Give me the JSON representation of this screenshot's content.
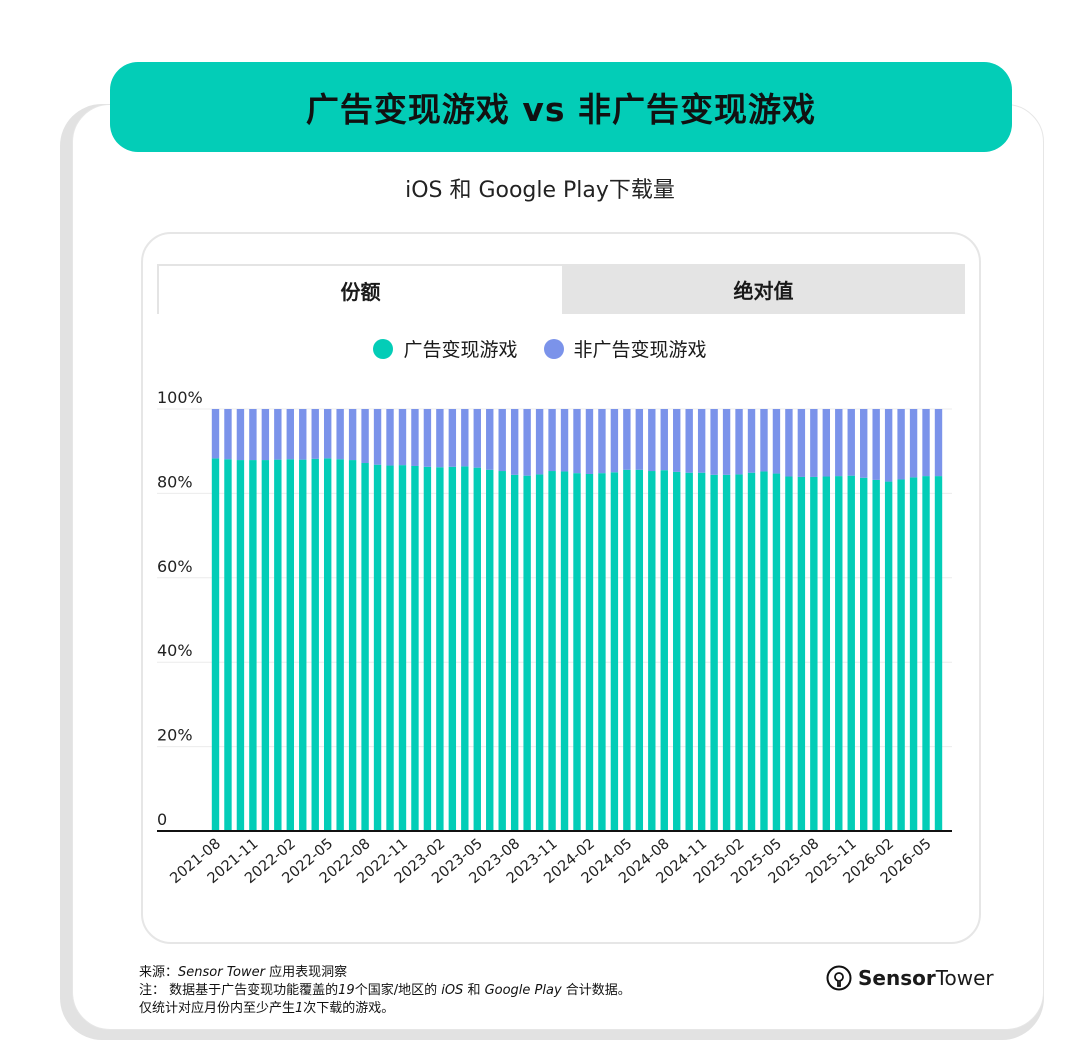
{
  "header": {
    "title": "广告变现游戏 vs 非广告变现游戏"
  },
  "subtitle": "iOS 和 Google Play下载量",
  "tabs": [
    {
      "label": "份额",
      "active": true
    },
    {
      "label": "绝对值",
      "active": false
    }
  ],
  "colors": {
    "ad": "#03cdb7",
    "non_ad": "#7b93ea",
    "accent": "#03cdb7"
  },
  "chart_data": {
    "type": "bar",
    "stacked": true,
    "ylim": [
      0,
      100
    ],
    "yticks": [
      "0",
      "20%",
      "40%",
      "60%",
      "80%",
      "100%"
    ],
    "yticks_values": [
      0,
      20,
      40,
      60,
      80,
      100
    ],
    "legend": {
      "placement": "top-center"
    },
    "xtick_labels": [
      "2021-08",
      "2021-11",
      "2022-02",
      "2022-05",
      "2022-08",
      "2022-11",
      "2023-02",
      "2023-05",
      "2023-08",
      "2023-11",
      "2024-02",
      "2024-05",
      "2024-08",
      "2024-11",
      "2025-02",
      "2025-05",
      "2025-08",
      "2025-11",
      "2026-02",
      "2026-05"
    ],
    "categories": [
      "2021-08",
      "2021-09",
      "2021-10",
      "2021-11",
      "2021-12",
      "2022-01",
      "2022-02",
      "2022-03",
      "2022-04",
      "2022-05",
      "2022-06",
      "2022-07",
      "2022-08",
      "2022-09",
      "2022-10",
      "2022-11",
      "2022-12",
      "2023-01",
      "2023-02",
      "2023-03",
      "2023-04",
      "2023-05",
      "2023-06",
      "2023-07",
      "2023-08",
      "2023-09",
      "2023-10",
      "2023-11",
      "2023-12",
      "2024-01",
      "2024-02",
      "2024-03",
      "2024-04",
      "2024-05",
      "2024-06",
      "2024-07",
      "2024-08",
      "2024-09",
      "2024-10",
      "2024-11",
      "2024-12",
      "2025-01",
      "2025-02",
      "2025-03",
      "2025-04",
      "2025-05",
      "2025-06",
      "2025-07",
      "2025-08",
      "2025-09",
      "2025-10",
      "2025-11",
      "2025-12",
      "2026-01",
      "2026-02",
      "2026-03",
      "2026-04",
      "2026-05",
      "2026-06"
    ],
    "series": [
      {
        "name": "广告变现游戏",
        "values": [
          88.3,
          88.1,
          87.9,
          87.9,
          87.9,
          88.0,
          88.1,
          88.0,
          88.2,
          88.3,
          88.1,
          87.9,
          87.2,
          86.8,
          86.6,
          86.7,
          86.5,
          86.3,
          86.2,
          86.3,
          86.4,
          86.1,
          85.6,
          85.3,
          84.4,
          84.2,
          84.5,
          85.3,
          85.2,
          84.8,
          84.6,
          84.8,
          85.0,
          85.6,
          85.6,
          85.3,
          85.5,
          85.1,
          84.9,
          84.9,
          84.4,
          84.4,
          84.5,
          84.9,
          85.2,
          84.7,
          84.0,
          83.9,
          83.9,
          84.0,
          84.1,
          84.2,
          83.7,
          83.2,
          82.8,
          83.3,
          83.8,
          84.1,
          84.1
        ]
      },
      {
        "name": "非广告变现游戏",
        "values": [
          11.7,
          11.9,
          12.1,
          12.1,
          12.1,
          12.0,
          11.9,
          12.0,
          11.8,
          11.7,
          11.9,
          12.1,
          12.8,
          13.2,
          13.4,
          13.3,
          13.5,
          13.7,
          13.8,
          13.7,
          13.6,
          13.9,
          14.4,
          14.7,
          15.6,
          15.8,
          15.5,
          14.7,
          14.8,
          15.2,
          15.4,
          15.2,
          15.0,
          14.4,
          14.4,
          14.7,
          14.5,
          14.9,
          15.1,
          15.1,
          15.6,
          15.6,
          15.5,
          15.1,
          14.8,
          15.3,
          16.0,
          16.1,
          16.1,
          16.0,
          15.9,
          15.8,
          16.3,
          16.8,
          17.2,
          16.7,
          16.2,
          15.9,
          15.9
        ]
      }
    ]
  },
  "footer": {
    "source_prefix": "来源：",
    "source_name": "Sensor Tower",
    "source_suffix": " 应用表现洞察",
    "note_prefix": "注：  数据基于广告变现功能覆盖的",
    "note_count": "19",
    "note_mid": "个国家/地区的 ",
    "note_ios": "iOS",
    "note_and": " 和 ",
    "note_gp": "Google Play",
    "note_suffix": " 合计数据。",
    "note2_prefix": "仅统计对应月份内至少产生",
    "note2_count": "1",
    "note2_suffix": "次下载的游戏。"
  },
  "brand": {
    "part1": "Sensor",
    "part2": "Tower",
    "icon": "sensor-tower-logo-icon"
  }
}
